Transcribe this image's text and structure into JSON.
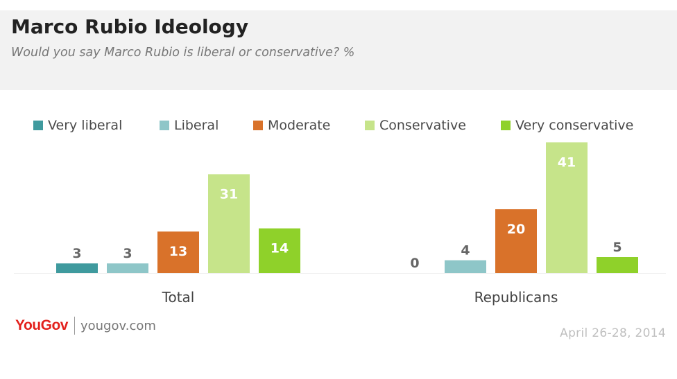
{
  "header": {
    "title": "Marco Rubio Ideology",
    "subtitle": "Would you say Marco Rubio is liberal or conservative? %"
  },
  "footer": {
    "logo": "YouGov",
    "url": "yougov.com",
    "date": "April 26-28, 2014"
  },
  "chart_data": {
    "type": "bar",
    "title": "Marco Rubio Ideology",
    "subtitle": "Would you say Marco Rubio is liberal or conservative? %",
    "categories": [
      "Total",
      "Republicans"
    ],
    "series": [
      {
        "name": "Very liberal",
        "color": "#3f9a9e",
        "values": [
          3,
          0
        ]
      },
      {
        "name": "Liberal",
        "color": "#8ec6c8",
        "values": [
          3,
          4
        ]
      },
      {
        "name": "Moderate",
        "color": "#d9722a",
        "values": [
          13,
          20
        ]
      },
      {
        "name": "Conservative",
        "color": "#c6e48a",
        "values": [
          31,
          41
        ]
      },
      {
        "name": "Very conservative",
        "color": "#8fd12a",
        "values": [
          14,
          5
        ]
      }
    ],
    "ylim": [
      0,
      41
    ],
    "grid": false,
    "legend": "top"
  }
}
